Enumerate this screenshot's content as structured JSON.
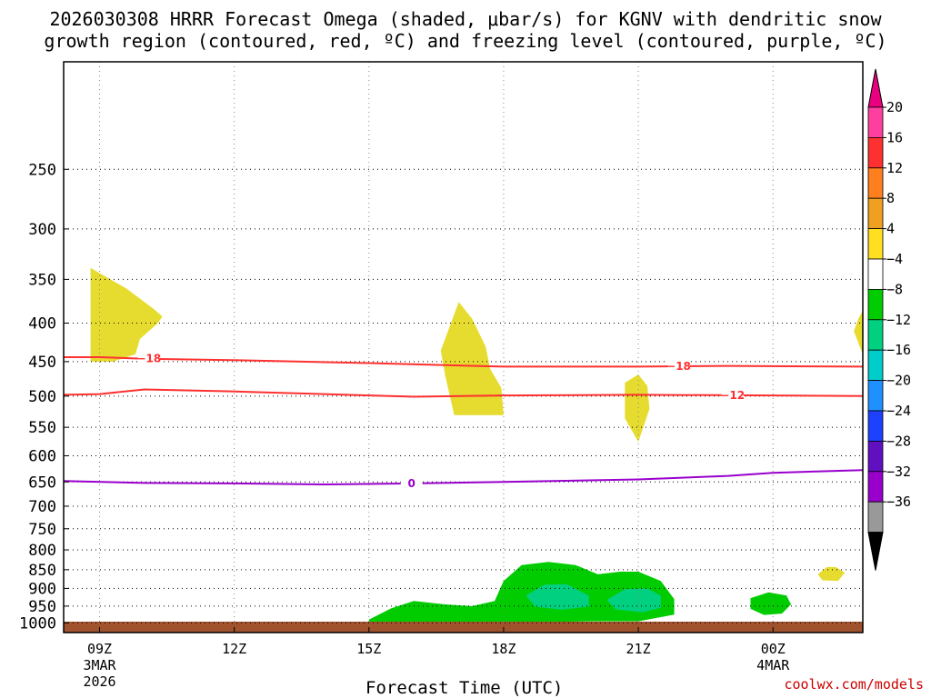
{
  "chart_data": {
    "type": "contour",
    "title_line_1": "2026030308 HRRR Forecast Omega (shaded, μbar/s) for KGNV with dendritic snow",
    "title_line_2": "growth region (contoured, red, ºC) and freezing level (contoured, purple, ºC)",
    "xlabel": "Forecast Time (UTC)",
    "credit": "coolwx.com/models",
    "x_ticks": [
      {
        "hour": 9,
        "label": "09Z",
        "sub1": "3MAR",
        "sub2": "2026"
      },
      {
        "hour": 12,
        "label": "12Z",
        "sub1": "",
        "sub2": ""
      },
      {
        "hour": 15,
        "label": "15Z",
        "sub1": "",
        "sub2": ""
      },
      {
        "hour": 18,
        "label": "18Z",
        "sub1": "",
        "sub2": ""
      },
      {
        "hour": 21,
        "label": "21Z",
        "sub1": "",
        "sub2": ""
      },
      {
        "hour": 24,
        "label": "00Z",
        "sub1": "4MAR",
        "sub2": ""
      }
    ],
    "xlim": [
      8.2,
      26.0
    ],
    "ylim_hpa": [
      1030,
      180
    ],
    "y_ticks_hpa": [
      250,
      300,
      350,
      400,
      450,
      500,
      550,
      600,
      650,
      700,
      750,
      800,
      850,
      900,
      950,
      1000
    ],
    "colorbar": {
      "labels": [
        "20",
        "16",
        "12",
        "8",
        "4",
        "−4",
        "−8",
        "−12",
        "−16",
        "−20",
        "−24",
        "−28",
        "−32",
        "−36"
      ],
      "colors": [
        "#ff3fa0",
        "#ff3030",
        "#ff7f1f",
        "#f0a020",
        "#ffdf20",
        "#ffffff",
        "#00cc00",
        "#00d080",
        "#00cccc",
        "#1e90ff",
        "#1e40ff",
        "#6010c0",
        "#9900cc",
        "#999999",
        "#000000"
      ],
      "over_color": "#e8007f",
      "under_color": "#000000"
    },
    "series": [
      {
        "name": "-18 ºC contour",
        "label": "−18",
        "color": "#ff3030",
        "points": [
          [
            8.2,
            444
          ],
          [
            9.0,
            444
          ],
          [
            10.0,
            446
          ],
          [
            12.0,
            448
          ],
          [
            15.0,
            452
          ],
          [
            18.0,
            457
          ],
          [
            21.0,
            457
          ],
          [
            23.0,
            456
          ],
          [
            26.0,
            457
          ]
        ]
      },
      {
        "name": "-12 ºC contour",
        "label": "−12",
        "color": "#ff3030",
        "points": [
          [
            8.2,
            498
          ],
          [
            9.0,
            497
          ],
          [
            10.0,
            490
          ],
          [
            12.0,
            493
          ],
          [
            14.0,
            497
          ],
          [
            16.0,
            501
          ],
          [
            18.0,
            499
          ],
          [
            21.0,
            498
          ],
          [
            24.0,
            499
          ],
          [
            26.0,
            500
          ]
        ]
      },
      {
        "name": "0 ºC freezing level",
        "label": "0",
        "color": "#9900cc",
        "points": [
          [
            8.2,
            648
          ],
          [
            10.0,
            652
          ],
          [
            12.0,
            653
          ],
          [
            14.0,
            655
          ],
          [
            16.0,
            653
          ],
          [
            18.0,
            650
          ],
          [
            21.0,
            645
          ],
          [
            23.0,
            638
          ],
          [
            24.0,
            632
          ],
          [
            26.0,
            627
          ]
        ]
      }
    ],
    "shaded_regions": [
      {
        "name": "omega 4 to 8 area 1",
        "value": 4,
        "color": "#e6dc2f",
        "points": [
          [
            8.8,
            450
          ],
          [
            8.8,
            338
          ],
          [
            9.6,
            360
          ],
          [
            10.2,
            383
          ],
          [
            10.4,
            392
          ],
          [
            10.3,
            400
          ],
          [
            9.9,
            420
          ],
          [
            9.8,
            440
          ],
          [
            9.3,
            450
          ]
        ]
      },
      {
        "name": "omega 4 to 8 area 2",
        "value": 4,
        "color": "#e6dc2f",
        "points": [
          [
            16.6,
            435
          ],
          [
            17.0,
            375
          ],
          [
            17.3,
            395
          ],
          [
            17.6,
            430
          ],
          [
            17.7,
            460
          ],
          [
            17.95,
            488
          ],
          [
            18.0,
            530
          ],
          [
            16.9,
            530
          ],
          [
            16.7,
            470
          ]
        ]
      },
      {
        "name": "omega 4 to 8 area 3",
        "value": 4,
        "color": "#e6dc2f",
        "points": [
          [
            20.7,
            480
          ],
          [
            21.0,
            468
          ],
          [
            21.2,
            485
          ],
          [
            21.25,
            520
          ],
          [
            21.0,
            575
          ],
          [
            20.7,
            535
          ]
        ]
      },
      {
        "name": "omega 4 to 8 area 4",
        "value": 4,
        "color": "#e6dc2f",
        "points": [
          [
            26.0,
            385
          ],
          [
            25.9,
            395
          ],
          [
            25.8,
            410
          ],
          [
            25.9,
            425
          ],
          [
            26.0,
            440
          ]
        ]
      },
      {
        "name": "omega 4 to 8 area 5",
        "value": 4,
        "color": "#e6dc2f",
        "points": [
          [
            25.0,
            862
          ],
          [
            25.2,
            843
          ],
          [
            25.4,
            843
          ],
          [
            25.6,
            858
          ],
          [
            25.45,
            880
          ],
          [
            25.1,
            878
          ]
        ]
      },
      {
        "name": "omega -4 to -8 area 1",
        "value": -4,
        "color": "#00cc00",
        "points": [
          [
            15.0,
            990
          ],
          [
            15.5,
            956
          ],
          [
            16.0,
            935
          ],
          [
            16.7,
            945
          ],
          [
            17.3,
            950
          ],
          [
            17.8,
            935
          ],
          [
            18.0,
            880
          ],
          [
            18.4,
            838
          ],
          [
            19.0,
            830
          ],
          [
            19.6,
            838
          ],
          [
            20.1,
            862
          ],
          [
            20.6,
            855
          ],
          [
            21.0,
            855
          ],
          [
            21.5,
            880
          ],
          [
            21.8,
            930
          ],
          [
            21.8,
            975
          ],
          [
            21.0,
            995
          ],
          [
            20.0,
            995
          ],
          [
            19.0,
            997
          ],
          [
            18.0,
            998
          ],
          [
            17.0,
            1005
          ],
          [
            16.0,
            1008
          ],
          [
            15.0,
            1006
          ]
        ]
      },
      {
        "name": "omega -4 to -8 area 2",
        "value": -4,
        "color": "#00cc00",
        "points": [
          [
            23.5,
            927
          ],
          [
            23.9,
            911
          ],
          [
            24.3,
            920
          ],
          [
            24.4,
            945
          ],
          [
            24.2,
            972
          ],
          [
            23.8,
            976
          ],
          [
            23.5,
            958
          ]
        ]
      },
      {
        "name": "omega -8 to -12 area 1",
        "value": -8,
        "color": "#00d080",
        "points": [
          [
            18.5,
            920
          ],
          [
            18.9,
            890
          ],
          [
            19.4,
            888
          ],
          [
            19.9,
            920
          ],
          [
            19.9,
            952
          ],
          [
            19.3,
            960
          ],
          [
            18.7,
            952
          ]
        ]
      },
      {
        "name": "omega -8 to -12 area 2",
        "value": -8,
        "color": "#00d080",
        "points": [
          [
            20.3,
            932
          ],
          [
            20.7,
            902
          ],
          [
            21.2,
            900
          ],
          [
            21.5,
            920
          ],
          [
            21.5,
            955
          ],
          [
            21.1,
            968
          ],
          [
            20.5,
            960
          ]
        ]
      }
    ]
  }
}
